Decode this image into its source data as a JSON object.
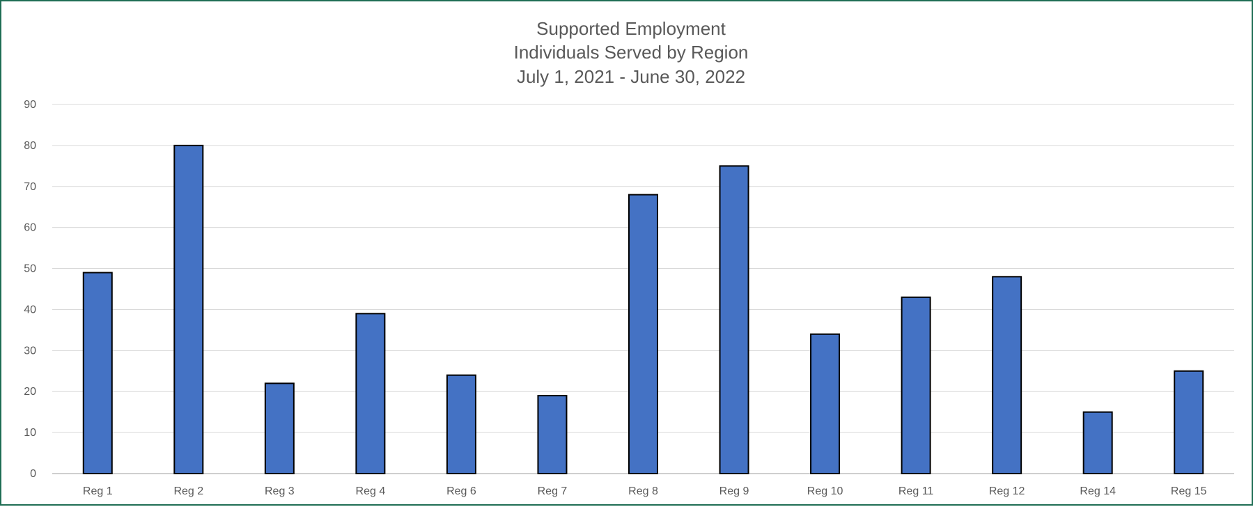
{
  "chart_data": {
    "type": "bar",
    "title": [
      "Supported Employment",
      "Individuals Served by Region",
      "July 1, 2021 - June 30, 2022"
    ],
    "xlabel": "",
    "ylabel": "",
    "categories": [
      "Reg 1",
      "Reg 2",
      "Reg 3",
      "Reg 4",
      "Reg 6",
      "Reg 7",
      "Reg 8",
      "Reg 9",
      "Reg 10",
      "Reg 11",
      "Reg 12",
      "Reg 14",
      "Reg 15"
    ],
    "values": [
      49,
      80,
      22,
      39,
      24,
      19,
      68,
      75,
      34,
      43,
      48,
      15,
      25
    ],
    "ylim": [
      0,
      90
    ],
    "yticks": [
      0,
      10,
      20,
      30,
      40,
      50,
      60,
      70,
      80,
      90
    ],
    "grid": true,
    "legend": "none",
    "colors": {
      "bar": "#4472c4",
      "bar_outline": "#000000",
      "frame": "#1f6e54"
    }
  }
}
